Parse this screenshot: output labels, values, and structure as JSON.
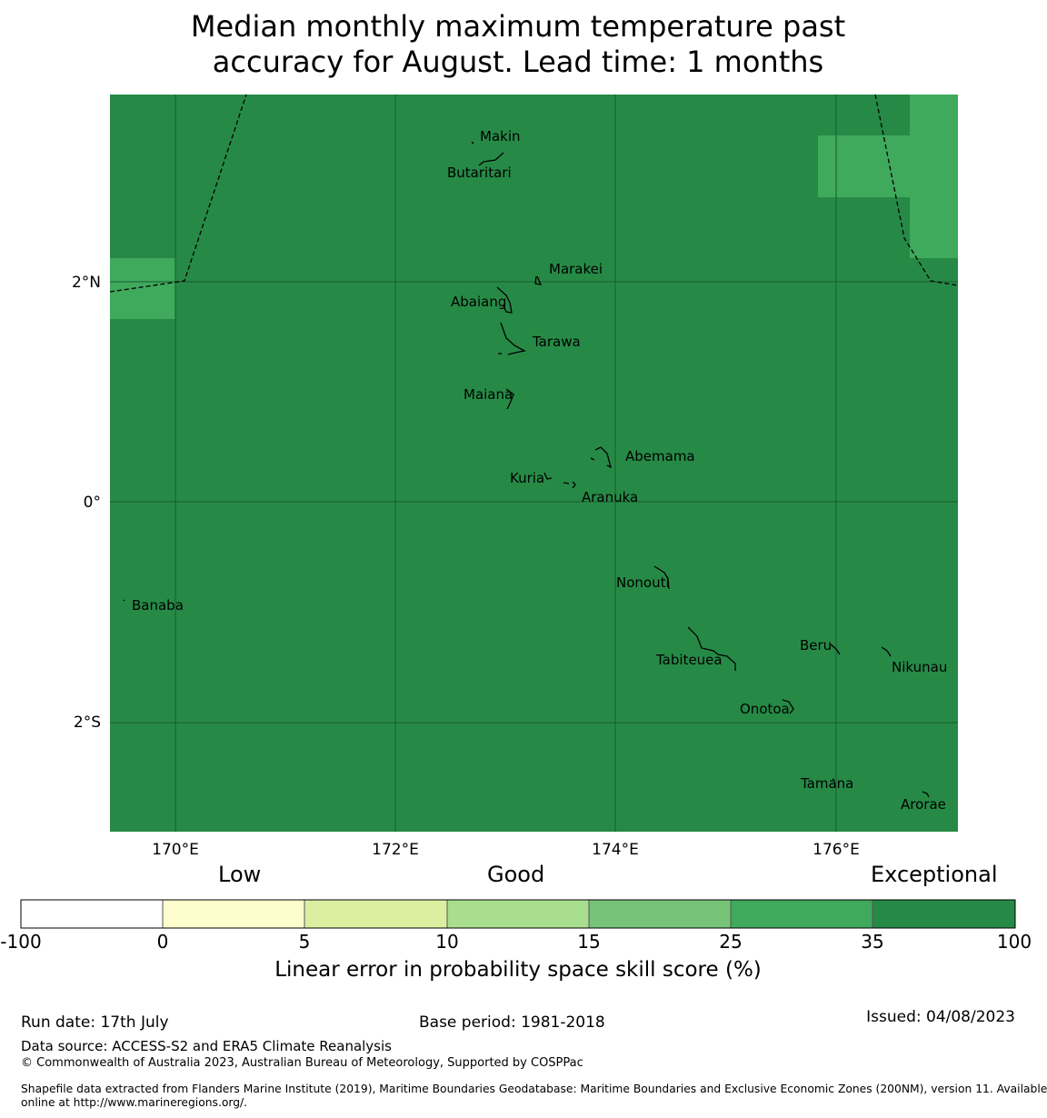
{
  "title": {
    "line1": "Median monthly maximum temperature past",
    "line2": "accuracy for August. Lead time: 1 months"
  },
  "colors": {
    "exceptional": "#268a46",
    "band_25_35": "#3fa95c",
    "ocean_background": "#268a46",
    "grid": "#1a5a2e",
    "coastline": "#000000",
    "eez_boundary": "#000000"
  },
  "map": {
    "lat_labels": [
      "2°N",
      "0°",
      "2°S"
    ],
    "lon_labels": [
      "170°E",
      "172°E",
      "174°E",
      "176°E"
    ],
    "places": [
      "Makin",
      "Butaritari",
      "Marakei",
      "Abaiang",
      "Tarawa",
      "Maiana",
      "Abemama",
      "Kuria",
      "Aranuka",
      "Nonouti",
      "Banaba",
      "Beru",
      "Tabiteuea",
      "Nikunau",
      "Onotoa",
      "Tamana",
      "Arorae"
    ]
  },
  "legend": {
    "categories": [
      "Low",
      "Good",
      "Exceptional"
    ],
    "bins": [
      {
        "from": "-100",
        "to": "0",
        "color": "#ffffff"
      },
      {
        "from": "0",
        "to": "5",
        "color": "#fefdce"
      },
      {
        "from": "5",
        "to": "10",
        "color": "#dcefa1"
      },
      {
        "from": "10",
        "to": "15",
        "color": "#aade8f"
      },
      {
        "from": "15",
        "to": "25",
        "color": "#77c478"
      },
      {
        "from": "25",
        "to": "35",
        "color": "#3fa95c"
      },
      {
        "from": "35",
        "to": "100",
        "color": "#268a46"
      }
    ],
    "ticks": [
      "-100",
      "0",
      "5",
      "10",
      "15",
      "25",
      "35",
      "100"
    ],
    "title": "Linear error in probability space skill score (%)"
  },
  "footer": {
    "run_date": "Run date: 17th July",
    "base_period": "Base period: 1981-2018",
    "issued": "Issued: 04/08/2023",
    "data_source": "Data source: ACCESS-S2 and ERA5 Climate Reanalysis",
    "copyright": "© Commonwealth of Australia 2023, Australian Bureau of Meteorology, Supported by COSPPac",
    "shapefile_line1": "Shapefile data extracted from Flanders Marine Institute (2019), Maritime Boundaries Geodatabase: Maritime Boundaries and Exclusive Economic Zones (200NM), version 11. Available",
    "shapefile_line2": "online at http://www.marineregions.org/."
  }
}
